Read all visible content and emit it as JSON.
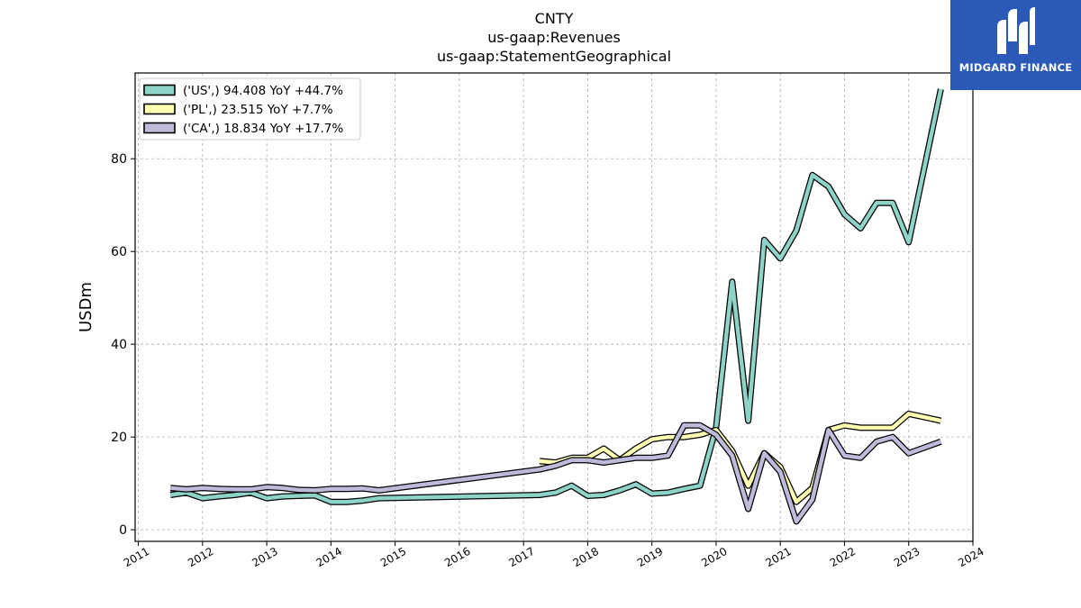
{
  "logo": {
    "text": "MIDGARD FINANCE"
  },
  "colors": {
    "US": "#8dd3c7",
    "PL": "#ffffb3",
    "CA": "#bebada",
    "edge": "#000000",
    "brand": "#2a59b8"
  },
  "chart_data": {
    "type": "line",
    "title": "CNTY",
    "subtitle_lines": [
      "us-gaap:Revenues",
      "us-gaap:StatementGeographical"
    ],
    "ylabel": "USDm",
    "xlabel": "",
    "xlim": [
      2010.95,
      2024.0
    ],
    "ylim": [
      -2.5,
      98.5
    ],
    "yticks": [
      0,
      20,
      40,
      60,
      80
    ],
    "xticks": [
      "2011",
      "2012",
      "2013",
      "2014",
      "2015",
      "2016",
      "2017",
      "2018",
      "2019",
      "2020",
      "2021",
      "2022",
      "2023",
      "2024"
    ],
    "grid": true,
    "legend_position": "top-left",
    "series": [
      {
        "name": "('US',) 94.408 YoY +44.7%",
        "color": "#8dd3c7",
        "x": [
          2011.5,
          2011.75,
          2012.0,
          2012.25,
          2012.5,
          2012.75,
          2013.0,
          2013.25,
          2013.5,
          2013.75,
          2014.0,
          2014.25,
          2014.5,
          2014.75,
          2017.25,
          2017.5,
          2017.75,
          2018.0,
          2018.25,
          2018.5,
          2018.75,
          2019.0,
          2019.25,
          2019.5,
          2019.75,
          2020.0,
          2020.25,
          2020.5,
          2020.75,
          2021.0,
          2021.25,
          2021.5,
          2021.75,
          2022.0,
          2022.25,
          2022.5,
          2022.75,
          2023.0,
          2023.5
        ],
        "y": [
          7.5,
          8.0,
          6.8,
          7.2,
          7.5,
          8.0,
          6.8,
          7.2,
          7.3,
          7.4,
          6.0,
          6.0,
          6.3,
          6.8,
          7.5,
          8.0,
          9.5,
          7.3,
          7.5,
          8.5,
          9.8,
          7.8,
          8.0,
          8.8,
          9.5,
          22.0,
          53.5,
          23.5,
          62.5,
          58.5,
          64.5,
          76.5,
          74.0,
          68.0,
          65.0,
          70.5,
          70.5,
          62.0,
          95.0
        ]
      },
      {
        "name": "('PL',) 23.515 YoY +7.7%",
        "color": "#ffffb3",
        "x": [
          2017.25,
          2017.5,
          2017.75,
          2018.0,
          2018.25,
          2018.5,
          2018.75,
          2019.0,
          2019.25,
          2019.5,
          2019.75,
          2020.0,
          2020.25,
          2020.5,
          2020.75,
          2021.0,
          2021.25,
          2021.5,
          2021.75,
          2022.0,
          2022.25,
          2022.5,
          2022.75,
          2023.0,
          2023.5
        ],
        "y": [
          14.8,
          14.5,
          15.5,
          15.5,
          17.5,
          15.0,
          17.5,
          19.5,
          20.0,
          20.0,
          20.5,
          21.5,
          17.0,
          9.5,
          16.5,
          13.5,
          6.0,
          9.0,
          21.5,
          22.5,
          22.0,
          22.0,
          22.0,
          25.0,
          23.5
        ]
      },
      {
        "name": "('CA',) 18.834 YoY +17.7%",
        "color": "#bebada",
        "x": [
          2011.5,
          2011.75,
          2012.0,
          2012.25,
          2012.5,
          2012.75,
          2013.0,
          2013.25,
          2013.5,
          2013.75,
          2014.0,
          2014.25,
          2014.5,
          2014.75,
          2017.25,
          2017.5,
          2017.75,
          2018.0,
          2018.25,
          2018.5,
          2018.75,
          2019.0,
          2019.25,
          2019.5,
          2019.75,
          2020.0,
          2020.25,
          2020.5,
          2020.75,
          2021.0,
          2021.25,
          2021.5,
          2021.75,
          2022.0,
          2022.25,
          2022.5,
          2022.75,
          2023.0,
          2023.5
        ],
        "y": [
          9.0,
          8.7,
          9.0,
          8.8,
          8.7,
          8.7,
          9.2,
          9.0,
          8.6,
          8.5,
          8.8,
          8.8,
          8.9,
          8.5,
          13.0,
          13.8,
          15.0,
          15.0,
          14.5,
          15.0,
          15.5,
          15.5,
          16.0,
          22.5,
          22.5,
          20.5,
          16.0,
          4.5,
          16.5,
          12.5,
          1.8,
          6.5,
          21.5,
          16.0,
          15.5,
          19.0,
          20.0,
          16.5,
          19.0
        ]
      }
    ]
  }
}
